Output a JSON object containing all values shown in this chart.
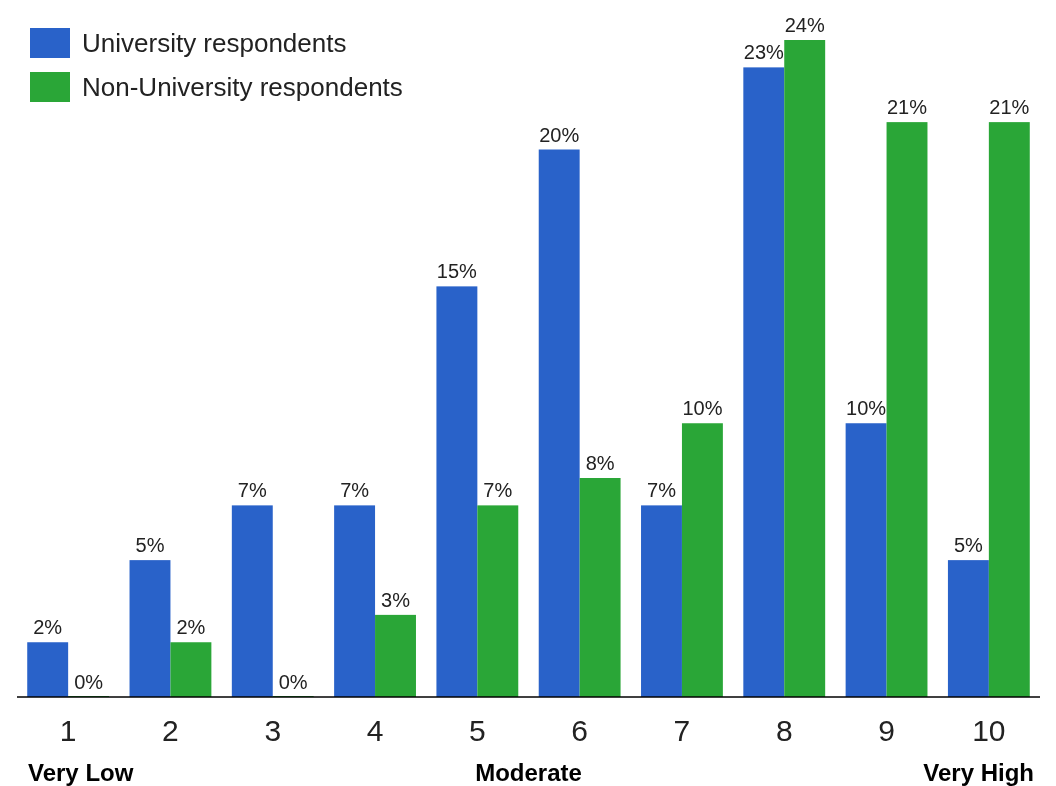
{
  "chart_data": {
    "type": "bar",
    "categories": [
      "1",
      "2",
      "3",
      "4",
      "5",
      "6",
      "7",
      "8",
      "9",
      "10"
    ],
    "series": [
      {
        "name": "University respondents",
        "color": "#2962c9",
        "values": [
          2,
          5,
          7,
          7,
          15,
          20,
          7,
          23,
          10,
          5
        ],
        "value_labels": [
          "2%",
          "5%",
          "7%",
          "7%",
          "15%",
          "20%",
          "7%",
          "23%",
          "10%",
          "5%"
        ]
      },
      {
        "name": "Non-University respondents",
        "color": "#2aa637",
        "values": [
          0,
          2,
          0,
          3,
          7,
          8,
          10,
          24,
          21,
          21
        ],
        "value_labels": [
          "0%",
          "2%",
          "0%",
          "3%",
          "7%",
          "8%",
          "10%",
          "24%",
          "21%",
          "21%"
        ]
      }
    ],
    "legend": "top left",
    "grid": false,
    "annotations": [
      "Very Low",
      "Moderate",
      "Very High"
    ]
  }
}
